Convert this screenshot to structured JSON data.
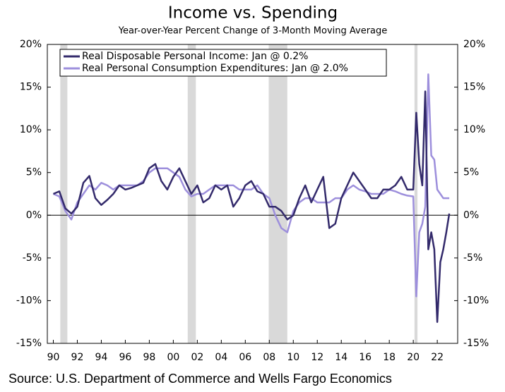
{
  "chart_data": {
    "type": "line",
    "title": "Income vs. Spending",
    "subtitle": "Year-over-Year Percent Change of 3-Month Moving Average",
    "source": "Source: U.S. Department of Commerce and Wells Fargo Economics",
    "x": [
      1990,
      1990.5,
      1991,
      1991.5,
      1992,
      1992.5,
      1993,
      1993.5,
      1994,
      1994.5,
      1995,
      1995.5,
      1996,
      1996.5,
      1997,
      1997.5,
      1998,
      1998.5,
      1999,
      1999.5,
      2000,
      2000.5,
      2001,
      2001.5,
      2002,
      2002.5,
      2003,
      2003.5,
      2004,
      2004.5,
      2005,
      2005.5,
      2006,
      2006.5,
      2007,
      2007.5,
      2008,
      2008.5,
      2009,
      2009.5,
      2010,
      2010.5,
      2011,
      2011.5,
      2012,
      2012.5,
      2013,
      2013.5,
      2014,
      2014.5,
      2015,
      2015.5,
      2016,
      2016.5,
      2017,
      2017.5,
      2018,
      2018.5,
      2019,
      2019.5,
      2020,
      2020.25,
      2020.5,
      2020.75,
      2021,
      2021.25,
      2021.5,
      2021.75,
      2022,
      2022.25,
      2022.5,
      2022.75,
      2023
    ],
    "series": [
      {
        "name": "Real Disposable Personal Income: Jan @ 0.2%",
        "color": "#332a6b",
        "values": [
          2.5,
          2.8,
          0.8,
          0.2,
          1.0,
          3.8,
          4.6,
          2.0,
          1.2,
          1.8,
          2.5,
          3.5,
          3.0,
          3.2,
          3.5,
          3.8,
          5.5,
          6.0,
          4.0,
          3.0,
          4.5,
          5.5,
          4.0,
          2.5,
          3.5,
          1.5,
          2.0,
          3.5,
          3.0,
          3.5,
          1.0,
          2.0,
          3.5,
          4.0,
          2.8,
          2.5,
          1.0,
          1.0,
          0.5,
          -0.5,
          0.0,
          2.0,
          3.5,
          1.5,
          3.0,
          4.5,
          -1.5,
          -1.0,
          2.0,
          3.5,
          5.0,
          4.0,
          3.0,
          2.0,
          2.0,
          3.0,
          3.0,
          3.5,
          4.5,
          3.0,
          3.0,
          12.0,
          6.0,
          3.5,
          14.5,
          -4.0,
          -2.0,
          -4.0,
          -12.5,
          -5.5,
          -4.0,
          -2.0,
          0.2
        ]
      },
      {
        "name": "Real Personal Consumption Expenditures: Jan @ 2.0%",
        "color": "#9d8fdc",
        "values": [
          2.5,
          2.2,
          0.5,
          -0.5,
          1.5,
          2.5,
          3.5,
          3.0,
          3.8,
          3.5,
          3.0,
          3.5,
          3.5,
          3.5,
          3.5,
          4.0,
          5.0,
          5.5,
          5.5,
          5.5,
          5.0,
          4.5,
          3.0,
          2.2,
          2.5,
          2.5,
          3.0,
          3.5,
          3.5,
          3.5,
          3.5,
          3.0,
          3.0,
          3.0,
          3.5,
          2.5,
          2.0,
          0.0,
          -1.5,
          -2.0,
          0.5,
          1.5,
          2.0,
          2.0,
          1.5,
          1.5,
          1.5,
          2.0,
          2.0,
          3.0,
          3.5,
          3.0,
          2.8,
          2.5,
          2.5,
          2.5,
          3.0,
          2.8,
          2.5,
          2.3,
          2.2,
          -9.5,
          -2.0,
          -1.0,
          1.0,
          16.5,
          7.0,
          6.5,
          3.0,
          2.5,
          2.0,
          2.0,
          2.0
        ]
      }
    ],
    "recessions": [
      [
        1990.58,
        1991.17
      ],
      [
        2001.2,
        2001.88
      ],
      [
        2007.95,
        2009.5
      ],
      [
        2020.1,
        2020.35
      ]
    ],
    "recession_color": "#d9d9d9",
    "xlim": [
      1989.5,
      2023.7
    ],
    "xticks": [
      {
        "value": 1990,
        "label": "90"
      },
      {
        "value": 1992,
        "label": "92"
      },
      {
        "value": 1994,
        "label": "94"
      },
      {
        "value": 1996,
        "label": "96"
      },
      {
        "value": 1998,
        "label": "98"
      },
      {
        "value": 2000,
        "label": "00"
      },
      {
        "value": 2002,
        "label": "02"
      },
      {
        "value": 2004,
        "label": "04"
      },
      {
        "value": 2006,
        "label": "06"
      },
      {
        "value": 2008,
        "label": "08"
      },
      {
        "value": 2010,
        "label": "10"
      },
      {
        "value": 2012,
        "label": "12"
      },
      {
        "value": 2014,
        "label": "14"
      },
      {
        "value": 2016,
        "label": "16"
      },
      {
        "value": 2018,
        "label": "18"
      },
      {
        "value": 2020,
        "label": "20"
      },
      {
        "value": 2022,
        "label": "22"
      }
    ],
    "ylim": [
      -15,
      20
    ],
    "yticks": [
      {
        "value": -15,
        "label": "-15%"
      },
      {
        "value": -10,
        "label": "-10%"
      },
      {
        "value": -5,
        "label": "-5%"
      },
      {
        "value": 0,
        "label": "0%"
      },
      {
        "value": 5,
        "label": "5%"
      },
      {
        "value": 10,
        "label": "10%"
      },
      {
        "value": 15,
        "label": "15%"
      },
      {
        "value": 20,
        "label": "20%"
      }
    ],
    "y2lim": [
      -15,
      20
    ],
    "y2ticks": [
      {
        "value": -15,
        "label": "-15%"
      },
      {
        "value": -10,
        "label": "-10%"
      },
      {
        "value": -5,
        "label": "-5%"
      },
      {
        "value": 0,
        "label": "0%"
      },
      {
        "value": 5,
        "label": "5%"
      },
      {
        "value": 10,
        "label": "10%"
      },
      {
        "value": 15,
        "label": "15%"
      },
      {
        "value": 20,
        "label": "20%"
      }
    ],
    "legend": "upper left"
  }
}
